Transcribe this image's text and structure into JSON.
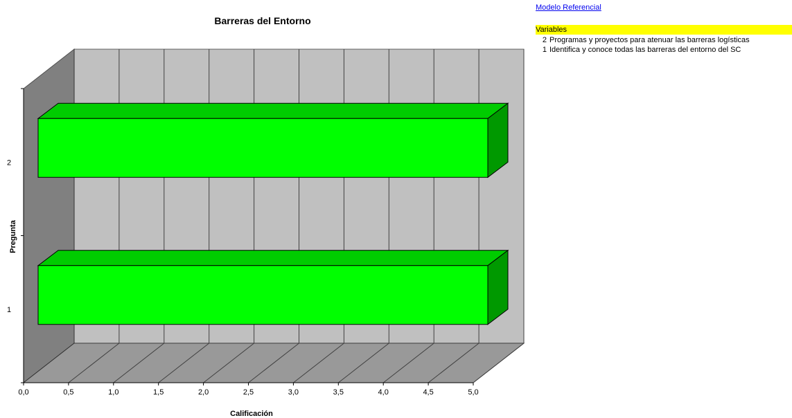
{
  "chart_data": {
    "type": "bar",
    "orientation": "horizontal",
    "title": "Barreras del Entorno",
    "xlabel": "Calificación",
    "ylabel": "Pregunta",
    "categories": [
      "1",
      "2"
    ],
    "values": [
      5.0,
      5.0
    ],
    "xlim": [
      0,
      5
    ],
    "xticks": [
      "0,0",
      "0,5",
      "1,0",
      "1,5",
      "2,0",
      "2,5",
      "3,0",
      "3,5",
      "4,0",
      "4,5",
      "5,0"
    ],
    "xtick_values": [
      0,
      0.5,
      1,
      1.5,
      2,
      2.5,
      3,
      3.5,
      4,
      4.5,
      5
    ],
    "grid": true,
    "three_d": true,
    "colors": {
      "bar_front": "#00ff00",
      "bar_top": "#00cc00",
      "bar_side": "#009900",
      "back_wall": "#c0c0c0",
      "side_wall": "#808080",
      "floor": "#999999"
    }
  },
  "sidebar": {
    "link_label": "Modelo Referencial",
    "variables_header": "Variables",
    "variables": [
      {
        "num": "2",
        "text": "Programas y proyectos para atenuar las barreras logísticas"
      },
      {
        "num": "1",
        "text": "Identifica y conoce todas las barreras del entorno del SC"
      }
    ]
  }
}
